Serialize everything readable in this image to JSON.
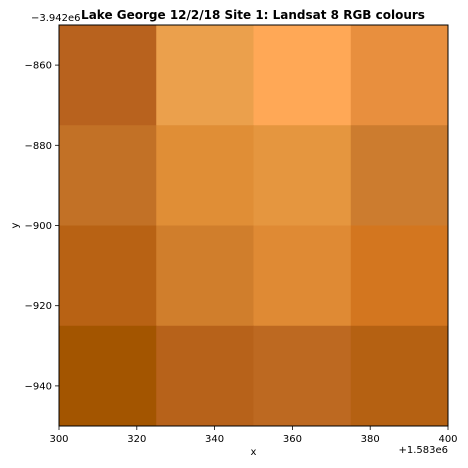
{
  "chart_data": {
    "type": "heatmap",
    "title": "Lake George 12/2/18 Site 1: Landsat 8 RGB colours",
    "xlabel": "x",
    "ylabel": "y",
    "x_offset_label": "+1.583e6",
    "y_offset_label": "−3.942e6",
    "xlim": [
      300,
      400
    ],
    "ylim": [
      -950,
      -850
    ],
    "x_ticks": [
      300,
      320,
      340,
      360,
      380,
      400
    ],
    "x_tick_labels": [
      "300",
      "320",
      "340",
      "360",
      "380",
      "400"
    ],
    "y_ticks": [
      -860,
      -880,
      -900,
      -920,
      -940
    ],
    "y_tick_labels": [
      "−860",
      "−880",
      "−900",
      "−920",
      "−940"
    ],
    "x_edges": [
      300,
      325,
      350,
      375,
      400
    ],
    "y_edges": [
      -850,
      -875,
      -900,
      -925,
      -950
    ],
    "cell_colors": [
      [
        "#b8621e",
        "#eba04c",
        "#ffa856",
        "#e88f3e"
      ],
      [
        "#c27126",
        "#e08e36",
        "#e5963f",
        "#cc7c2f"
      ],
      [
        "#b86214",
        "#d07e2c",
        "#df8a34",
        "#d3761f"
      ],
      [
        "#a35500",
        "#b7621a",
        "#bd6921",
        "#b56112"
      ]
    ],
    "grid": false,
    "legend": "none"
  }
}
